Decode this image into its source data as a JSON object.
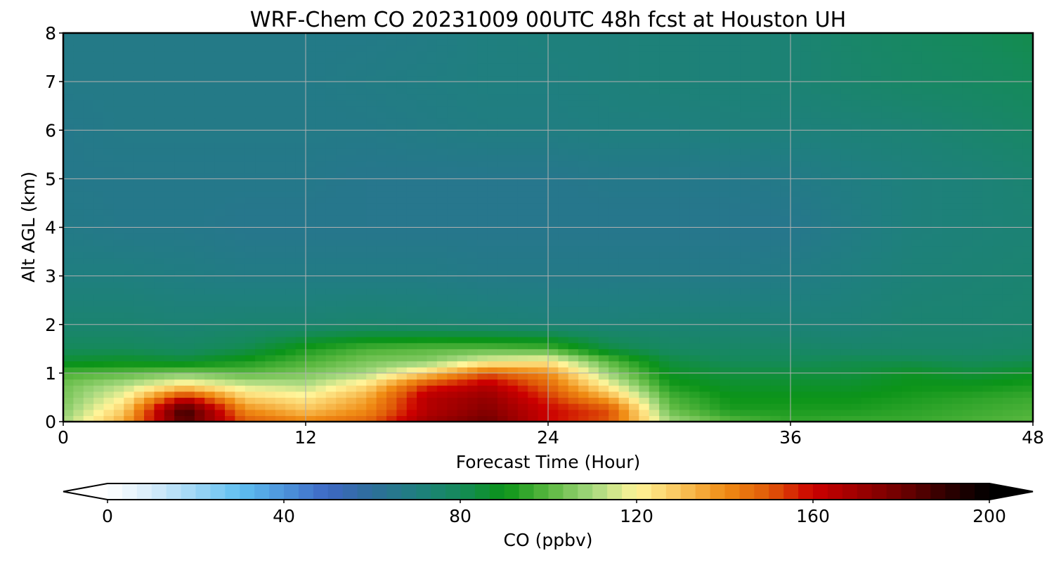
{
  "chart_data": {
    "type": "heatmap",
    "title": "WRF-Chem CO  20231009 00UTC 48h fcst at Houston UH",
    "xlabel": "Forecast Time (Hour)",
    "ylabel": "Alt AGL (km)",
    "xlim": [
      0,
      48
    ],
    "ylim": [
      0,
      8
    ],
    "x_ticks": [
      "0",
      "12",
      "24",
      "36",
      "48"
    ],
    "y_ticks": [
      "0",
      "1",
      "2",
      "3",
      "4",
      "5",
      "6",
      "7",
      "8"
    ],
    "grid": true,
    "z_x": [
      0,
      3,
      6,
      9,
      12,
      15,
      18,
      21,
      24,
      27,
      30,
      33,
      36,
      39,
      42,
      45,
      48
    ],
    "z_y": [
      0,
      0.25,
      0.5,
      0.75,
      1.0,
      1.25,
      1.5,
      2.0,
      3.0,
      4.0,
      5.0,
      6.0,
      7.0,
      8.0
    ],
    "z": [
      [
        110,
        135,
        185,
        150,
        142,
        148,
        170,
        180,
        160,
        150,
        110,
        100,
        95,
        96,
        96,
        98,
        100
      ],
      [
        106,
        128,
        190,
        140,
        130,
        140,
        165,
        175,
        160,
        152,
        102,
        92,
        92,
        92,
        94,
        96,
        98
      ],
      [
        104,
        120,
        160,
        128,
        122,
        135,
        165,
        172,
        155,
        135,
        98,
        90,
        90,
        90,
        92,
        94,
        96
      ],
      [
        103,
        112,
        125,
        115,
        112,
        125,
        155,
        165,
        148,
        120,
        92,
        87,
        87,
        87,
        90,
        90,
        92
      ],
      [
        98,
        100,
        104,
        100,
        104,
        110,
        128,
        150,
        140,
        108,
        88,
        84,
        84,
        84,
        88,
        85,
        88
      ],
      [
        86,
        88,
        86,
        92,
        98,
        104,
        106,
        118,
        122,
        100,
        84,
        80,
        80,
        82,
        82,
        80,
        82
      ],
      [
        80,
        80,
        78,
        82,
        92,
        98,
        100,
        100,
        98,
        84,
        78,
        77,
        77,
        76,
        76,
        76,
        77
      ],
      [
        74,
        74,
        73,
        74,
        74,
        75,
        74,
        73,
        72,
        72,
        73,
        73,
        72,
        72,
        74,
        74,
        75
      ],
      [
        70,
        70,
        69,
        68,
        68,
        68,
        68,
        67,
        67,
        67,
        67,
        67,
        68,
        70,
        72,
        73,
        74
      ],
      [
        67,
        66,
        66,
        65,
        65,
        65,
        65,
        65,
        65,
        65,
        65,
        65,
        65,
        68,
        71,
        72,
        73
      ],
      [
        66,
        66,
        66,
        66,
        66,
        65,
        65,
        65,
        65,
        66,
        66,
        66,
        67,
        69,
        71,
        72,
        74
      ],
      [
        66,
        67,
        67,
        67,
        67,
        67,
        68,
        69,
        69,
        70,
        70,
        71,
        71,
        72,
        73,
        75,
        77
      ],
      [
        67,
        67,
        67,
        67,
        67,
        68,
        69,
        70,
        70,
        71,
        72,
        72,
        73,
        75,
        77,
        78,
        80
      ],
      [
        67,
        67,
        67,
        67,
        67,
        67,
        68,
        70,
        71,
        71,
        72,
        72,
        73,
        76,
        78,
        80,
        82
      ]
    ],
    "colorbar": {
      "label": "CO  (ppbv)",
      "range": [
        0,
        200
      ],
      "ticks": [
        "0",
        "40",
        "80",
        "120",
        "160",
        "200"
      ],
      "extend": "both",
      "colors": [
        "#ffffff",
        "#d6ecfa",
        "#9ed6f5",
        "#5fbff0",
        "#4d94db",
        "#3d68c4",
        "#2e6e9a",
        "#1f7f7f",
        "#158a5a",
        "#0b9418",
        "#5ab840",
        "#a5d87e",
        "#fff59a",
        "#f9c45a",
        "#f08c14",
        "#e05a08",
        "#cc0000",
        "#9e0000",
        "#6e0000",
        "#300000",
        "#000000"
      ]
    }
  }
}
